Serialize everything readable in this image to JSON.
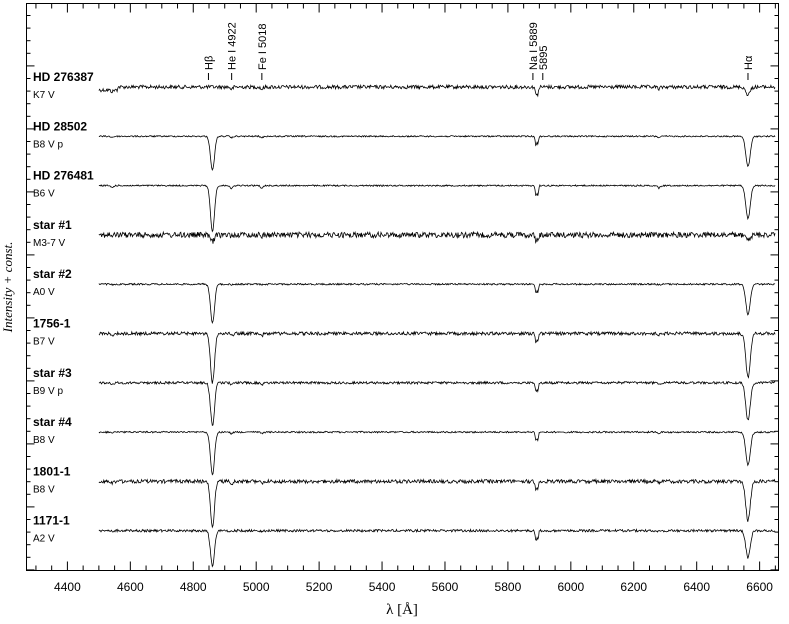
{
  "chart_data": {
    "type": "line",
    "xlabel": "λ [Å]",
    "ylabel": "Intensity + const.",
    "xlim": [
      4270,
      6660
    ],
    "xticks": [
      4400,
      4600,
      4800,
      5000,
      5200,
      5400,
      5600,
      5800,
      6000,
      6200,
      6400,
      6600
    ],
    "xtick_labels": [
      "4400",
      "4600",
      "4800",
      "5000",
      "5200",
      "5400",
      "5600",
      "5800",
      "6000",
      "6200",
      "6400",
      "6600"
    ],
    "x_start": 4500,
    "x_end": 6650,
    "grid": false,
    "legend": "none",
    "line_marks": [
      {
        "label": "Hβ",
        "x": 4861
      },
      {
        "label": "He I 4922",
        "x": 4922
      },
      {
        "label": "Fe I 5018",
        "x": 5018
      },
      {
        "label": "Na I 5889",
        "x": 5889
      },
      {
        "label": "5895",
        "x": 5895
      },
      {
        "label": "Hα",
        "x": 6563
      }
    ],
    "series": [
      {
        "name": "HD 276387",
        "sptype": "K7 V",
        "noise": 0.9,
        "hb": 0.0,
        "ha": 0.25,
        "na": 0.45,
        "hef": 0.3,
        "ramp": true
      },
      {
        "name": "HD 28502",
        "sptype": "B8 V p",
        "noise": 0.35,
        "hb": 1.0,
        "ha": 1.0,
        "na": 0.5,
        "hef": 0.2,
        "ramp": false
      },
      {
        "name": "HD 276481",
        "sptype": "B6 V",
        "noise": 0.35,
        "hb": 1.35,
        "ha": 1.1,
        "na": 0.6,
        "hef": 0.4,
        "ramp": false
      },
      {
        "name": "star #1",
        "sptype": "M3-7 V",
        "noise": 1.4,
        "hb": 0.2,
        "ha": 0.2,
        "na": 0.4,
        "hef": 0.1,
        "ramp": false
      },
      {
        "name": "star #2",
        "sptype": "A0 V",
        "noise": 0.4,
        "hb": 1.15,
        "ha": 1.0,
        "na": 0.5,
        "hef": 0.1,
        "ramp": false
      },
      {
        "name": "1756-1",
        "sptype": "B7 V",
        "noise": 0.8,
        "hb": 1.45,
        "ha": 1.45,
        "na": 0.5,
        "hef": 0.3,
        "ramp": false
      },
      {
        "name": "star #3",
        "sptype": "B9 V p",
        "noise": 0.6,
        "hb": 1.25,
        "ha": 1.25,
        "na": 0.5,
        "hef": 0.3,
        "ramp": false
      },
      {
        "name": "star #4",
        "sptype": "B8 V",
        "noise": 0.4,
        "hb": 1.25,
        "ha": 1.1,
        "na": 0.5,
        "hef": 0.2,
        "ramp": false
      },
      {
        "name": "1801-1",
        "sptype": "B8 V",
        "noise": 0.9,
        "hb": 1.3,
        "ha": 1.3,
        "na": 0.5,
        "hef": 0.3,
        "ramp": false
      },
      {
        "name": "1171-1",
        "sptype": "A2 V",
        "noise": 0.6,
        "hb": 1.05,
        "ha": 0.9,
        "na": 0.6,
        "hef": 0.1,
        "ramp": false
      }
    ]
  }
}
